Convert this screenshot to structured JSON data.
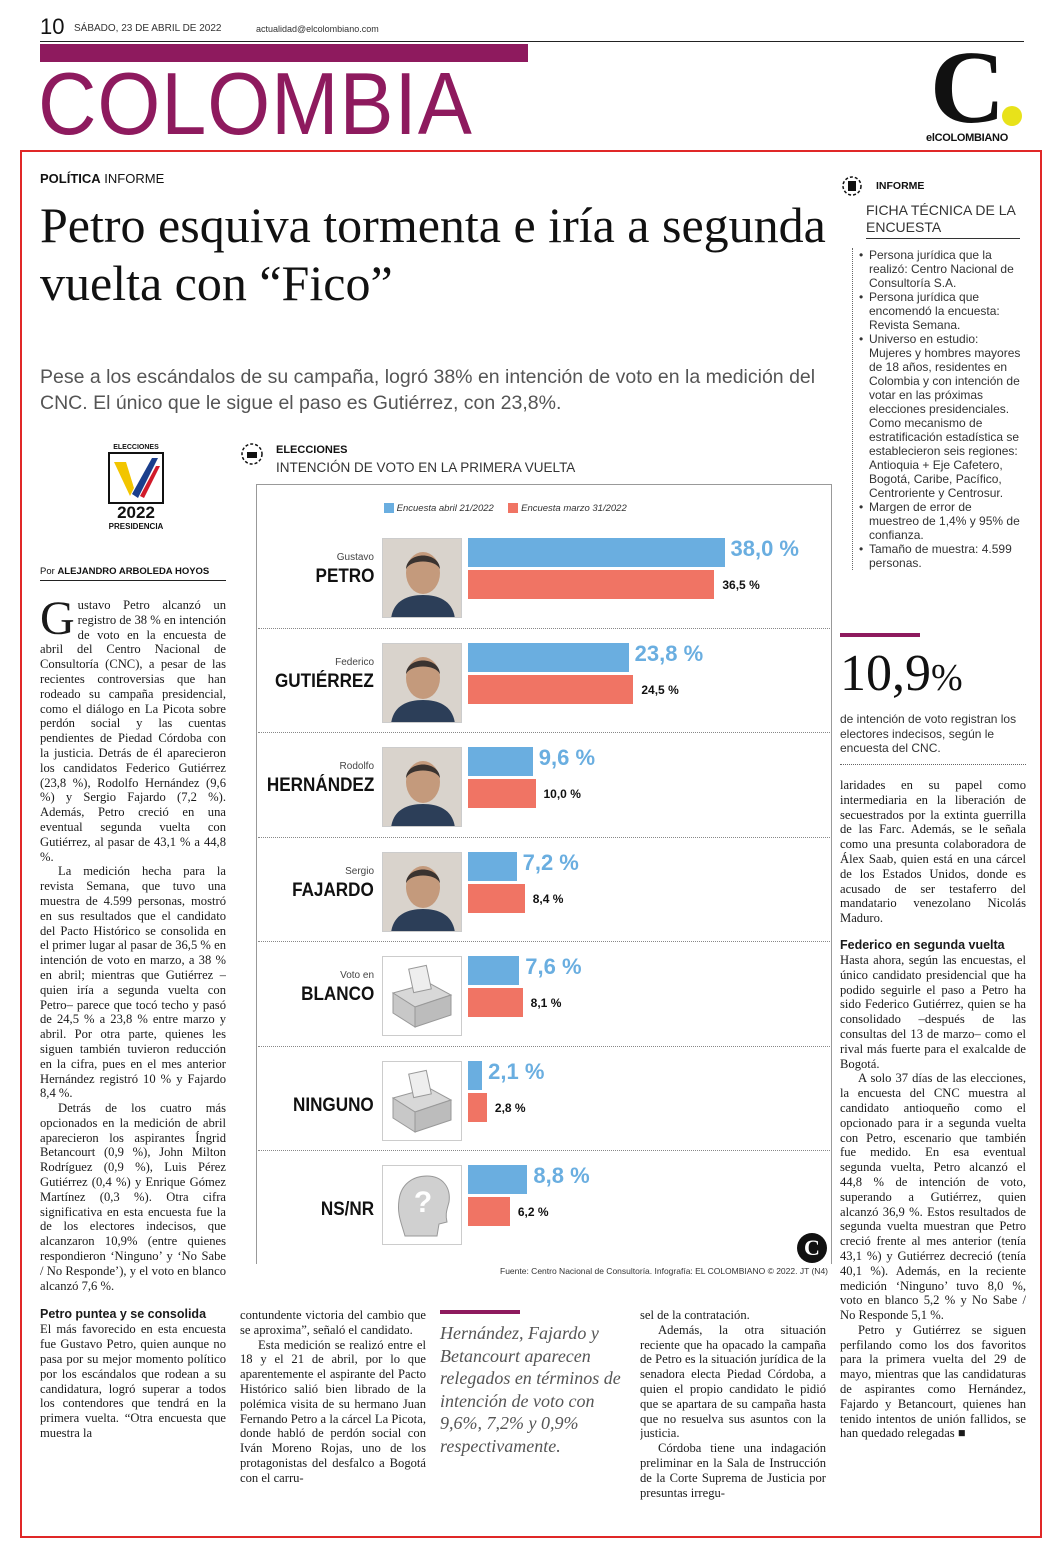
{
  "header": {
    "page_number": "10",
    "date": "SÁBADO, 23 DE ABRIL DE 2022",
    "email": "actualidad@elcolombiano.com",
    "section": "COLOMBIA",
    "logo_letter": "C",
    "logo_name": "elCOLOMBIANO"
  },
  "article": {
    "kicker_bold": "POLÍTICA",
    "kicker": "INFORME",
    "title": "Petro esquiva tormenta e iría a segunda vuelta con “Fico”",
    "deck": "Pese a los escándalos de su campaña, logró 38% en intención de voto en la medición del CNC. El único que le sigue el paso es Gutiérrez, con 23,8%.",
    "badge_top": "ELECCIONES",
    "badge_year": "2022",
    "badge_bottom": "PRESIDENCIA",
    "byline_prefix": "Por",
    "byline": "ALEJANDRO ARBOLEDA HOYOS",
    "col1_dropcap": "G",
    "col1_p1": "ustavo Petro alcanzó un registro de 38 % en intención de voto en la encuesta de abril del Centro Nacional de Consultoría (CNC), a pesar de las recientes controversias que han rodeado su campaña presidencial, como el diálogo en La Picota sobre perdón social y las cuentas pendientes de Piedad Córdoba con la justicia. Detrás de él aparecieron los candidatos Federico Gutiérrez (23,8 %), Rodolfo Hernández (9,6 %) y Sergio Fajardo (7,2 %). Además, Petro creció en una eventual segunda vuelta con Gutiérrez, al pasar de 43,1 % a 44,8 %.",
    "col1_p2": "La medición hecha para la revista Semana, que tuvo una muestra de 4.599 personas, mostró en sus resultados que el candidato del Pacto Histórico se consolida en el primer lugar al pasar de 36,5 % en intención de voto en marzo, a 38 % en abril; mientras que Gutiérrez –quien iría a segunda vuelta con Petro– parece que tocó techo y pasó de 24,5 % a 23,8 % entre marzo y abril. Por otra parte, quienes les siguen también tuvieron reducción en la cifra, pues en el mes anterior Hernández registró 10 % y Fajardo 8,4 %.",
    "col1_p3": "Detrás de los cuatro más opcionados en la medición de abril aparecieron los aspirantes Íngrid Betancourt (0,9 %), John Milton Rodríguez (0,9 %), Luis Pérez Gutiérrez (0,4 %) y Enrique Gómez Martínez (0,3 %). Otra cifra significativa en esta encuesta fue la de los electores indecisos, que alcanzaron 10,9% (entre quienes respondieron ‘Ninguno’ y ‘No Sabe / No Responde’), y el voto en blanco alcanzó 7,6 %.",
    "col1_sub": "Petro puntea y se consolida",
    "col1_p4": "El más favorecido en esta encuesta fue Gustavo Petro, quien aunque no pasa por su mejor momento político por los escándalos que rodean a su candidatura, logró superar a todos los contendores que tendrá en la primera vuelta. “Otra encuesta que muestra la",
    "col2_p1": "contundente victoria del cambio que se aproxima”, señaló el candidato.",
    "col2_p2": "Esta medición se realizó entre el 18 y el 21 de abril, por lo que aparentemente el aspirante del Pacto Histórico salió bien librado de la polémica visita de su hermano Juan Fernando Petro a la cárcel La Picota, donde habló de perdón social con Iván Moreno Rojas, uno de los protagonistas del desfalco a Bogotá con el carru-",
    "pullquote": "Hernández, Fajardo y Betancourt aparecen relegados en términos de intención de voto con 9,6%, 7,2% y 0,9% respectivamente.",
    "col4_p1": "sel de la contratación.",
    "col4_p2": "Además, la otra situación reciente que ha opacado la campaña de Petro es la situación jurídica de la senadora electa Piedad Córdoba, a quien el propio candidato le pidió que se apartara de su campaña hasta que no resuelva sus asuntos con la justicia.",
    "col4_p3": "Córdoba tiene una indagación preliminar en la Sala de Instrucción de la Corte Suprema de Justicia por presuntas irregu-",
    "col5_p1": "laridades en su papel como intermediaria en la liberación de secuestrados por la extinta guerrilla de las Farc. Además, se le señala como una presunta colaboradora de Álex Saab, quien está en una cárcel de los Estados Unidos, donde es acusado de ser testaferro del mandatario venezolano Nicolás Maduro.",
    "col5_sub": "Federico en segunda vuelta",
    "col5_p2": "Hasta ahora, según las encuestas, el único candidato presidencial que ha podido seguirle el paso a Petro ha sido Federico Gutiérrez, quien se ha consolidado –después de las consultas del 13 de marzo– como el rival más fuerte para el exalcalde de Bogotá.",
    "col5_p3": "A solo 37 días de las elecciones, la encuesta del CNC muestra al candidato antioqueño como el opcionado para ir a segunda vuelta con Petro, escenario que también fue medido. En esa eventual segunda vuelta, Petro alcanzó el 44,8 % de intención de voto, superando a Gutiérrez, quien alcanzó 36,9 %. Estos resultados de segunda vuelta muestran que Petro creció frente al mes anterior (tenía 43,1 %) y Gutiérrez decreció (tenía 40,1 %). Además, en la reciente medición ‘Ninguno’ tuvo 8,0 %, voto en blanco 5,2 % y No Sabe / No Responde 5,1 %.",
    "col5_p4": "Petro y Gutiérrez se siguen perfilando como los dos favoritos para la primera vuelta del 29 de mayo, mientras que las candidaturas de aspirantes como Hernández, Fajardo y Betancourt, quienes han tenido intentos de unión fallidos, se han quedado relegadas ■"
  },
  "sidebar": {
    "tag": "INFORME",
    "title": "FICHA TÉCNICA DE LA ENCUESTA",
    "items": [
      "Persona jurídica que la realizó: Centro Nacional de Consultoría S.A.",
      "Persona jurídica que encomendó la encuesta: Revista Semana.",
      "Universo en estudio: Mujeres y hombres mayores de 18 años, residentes en Colombia y con intención de votar en las próximas elecciones presidenciales. Como mecanismo de estratificación estadística se establecieron seis regiones: Antioquia + Eje Cafetero, Bogotá, Caribe, Pacífico, Centroriente y Centrosur.",
      "Margen de error de muestreo de 1,4% y 95% de confianza.",
      "Tamaño de muestra: 4.599 personas."
    ],
    "big_number": "10,9",
    "big_unit": "%",
    "big_caption": "de intención de voto registran los electores indecisos, según le encuesta del CNC."
  },
  "chart_data": {
    "type": "bar",
    "kicker": "ELECCIONES",
    "title": "INTENCIÓN DE VOTO EN LA PRIMERA VUELTA",
    "legend": [
      "Encuesta abril 21/2022",
      "Encuesta marzo 31/2022"
    ],
    "colors": {
      "abril": "#6aaee0",
      "marzo": "#f07464"
    },
    "categories": [
      {
        "first": "Gustavo",
        "last": "PETRO",
        "icon": "photo-petro"
      },
      {
        "first": "Federico",
        "last": "GUTIÉRREZ",
        "icon": "photo-gutierrez"
      },
      {
        "first": "Rodolfo",
        "last": "HERNÁNDEZ",
        "icon": "photo-hernandez"
      },
      {
        "first": "Sergio",
        "last": "FAJARDO",
        "icon": "photo-fajardo"
      },
      {
        "first": "Voto en",
        "last": "BLANCO",
        "icon": "ballot-box-icon"
      },
      {
        "first": "",
        "last": "NINGUNO",
        "icon": "ballot-box-icon"
      },
      {
        "first": "",
        "last": "NS/NR",
        "icon": "question-head-icon"
      }
    ],
    "series": [
      {
        "name": "Encuesta abril 21/2022",
        "values": [
          38.0,
          23.8,
          9.6,
          7.2,
          7.6,
          2.1,
          8.8
        ],
        "labels": [
          "38,0 %",
          "23,8 %",
          "9,6 %",
          "7,2 %",
          "7,6 %",
          "2,1 %",
          "8,8 %"
        ]
      },
      {
        "name": "Encuesta marzo 31/2022",
        "values": [
          36.5,
          24.5,
          10.0,
          8.4,
          8.1,
          2.8,
          6.2
        ],
        "labels": [
          "36,5 %",
          "24,5 %",
          "10,0 %",
          "8,4 %",
          "8,1 %",
          "2,8 %",
          "6,2 %"
        ]
      }
    ],
    "source": "Fuente: Centro Nacional de Consultoría. Infografía: EL COLOMBIANO © 2022. JT (N4)"
  }
}
